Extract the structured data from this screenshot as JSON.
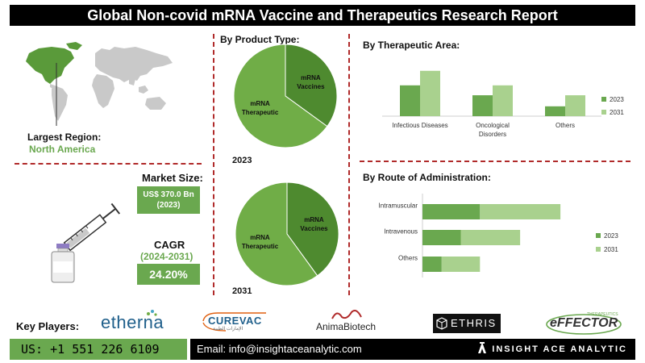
{
  "title": "Global Non-covid mRNA Vaccine and Therapeutics Research Report",
  "largest_region": {
    "label": "Largest Region:",
    "value": "North America"
  },
  "market_size": {
    "label": "Market Size:",
    "value": "US$ 370.0 Bn",
    "year": "(2023)"
  },
  "cagr": {
    "label": "CAGR",
    "period": "(2024-2031)",
    "value": "24.20%"
  },
  "product_type": {
    "heading": "By Product Type:",
    "pies": [
      {
        "year": "2023",
        "slices": [
          {
            "label_lines": [
              "mRNA",
              "Vaccines"
            ],
            "value": 35
          },
          {
            "label_lines": [
              "mRNA",
              "Therapeutic"
            ],
            "value": 65
          }
        ]
      },
      {
        "year": "2031",
        "slices": [
          {
            "label_lines": [
              "mRNA",
              "Vaccines"
            ],
            "value": 40
          },
          {
            "label_lines": [
              "mRNA",
              "Therapeutic"
            ],
            "value": 60
          }
        ]
      }
    ]
  },
  "key_players": {
    "label": "Key Players:",
    "names": [
      "etherna",
      "CUREVAC",
      "AnimaBiotech",
      "ETHRIS",
      "eFFECTOR"
    ],
    "curevac_sub": "الإمارات الطبية",
    "effector_sub": "THERAPEUTICS"
  },
  "footer": {
    "phone": "US: +1 551 226 6109",
    "email": "Email: info@insightaceanalytic.com",
    "brand": "INSIGHT ACE ANALYTIC"
  },
  "colors": {
    "dark_green": "#6aa84f",
    "light_green": "#a9d18e",
    "pie_dark": "#4e8a2f",
    "pie_main": "#70ad47",
    "accent_red": "#b02a2a"
  },
  "chart_data": [
    {
      "type": "bar",
      "heading": "By  Therapeutic Area:",
      "categories": [
        "Infectious Diseases",
        "Oncological Disorders",
        "Others"
      ],
      "category_lines": [
        [
          "Infectious Diseases"
        ],
        [
          "Oncological",
          "Disorders"
        ],
        [
          "Others"
        ]
      ],
      "series": [
        {
          "name": "2023",
          "values": [
            53,
            36,
            17
          ]
        },
        {
          "name": "2031",
          "values": [
            78,
            53,
            36
          ]
        }
      ],
      "ylim": [
        0,
        100
      ],
      "legend": "right"
    },
    {
      "type": "bar",
      "orientation": "horizontal",
      "heading": "By Route of Administration:",
      "categories": [
        "Intramuscular",
        "Intravenous",
        "Others"
      ],
      "series": [
        {
          "name": "2023",
          "values": [
            30,
            20,
            10
          ]
        },
        {
          "name": "2031",
          "values": [
            42,
            31,
            20
          ]
        }
      ],
      "stacked": true,
      "xlim": [
        0,
        80
      ],
      "legend": "right"
    }
  ]
}
